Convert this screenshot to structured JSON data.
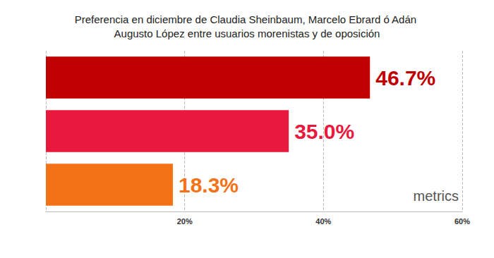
{
  "chart_data": {
    "type": "bar",
    "orientation": "horizontal",
    "title": "Preferencia en diciembre de Claudia Sheinbaum, Marcelo Ebrard ó Adán Augusto López entre usuarios morenistas y de oposición",
    "categories": [
      null,
      null,
      null
    ],
    "values": [
      46.7,
      35.0,
      18.3
    ],
    "value_labels": [
      "46.7%",
      "35.0%",
      "18.3%"
    ],
    "colors": [
      "#c00000",
      "#e8193c",
      "#f47216"
    ],
    "xlim": [
      0,
      60
    ],
    "xticks": [
      {
        "value": 20,
        "label": "20%"
      },
      {
        "value": 40,
        "label": "40%"
      },
      {
        "value": 60,
        "label": "60%"
      }
    ],
    "grid": true,
    "data_labels": true,
    "annotations": [
      "metrics"
    ]
  }
}
